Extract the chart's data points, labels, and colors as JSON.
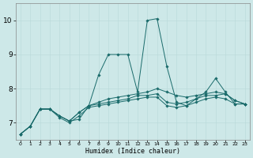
{
  "xlabel": "Humidex (Indice chaleur)",
  "xlim": [
    -0.5,
    23.5
  ],
  "ylim": [
    6.5,
    10.5
  ],
  "yticks": [
    7,
    8,
    9,
    10
  ],
  "xticks": [
    0,
    1,
    2,
    3,
    4,
    5,
    6,
    7,
    8,
    9,
    10,
    11,
    12,
    13,
    14,
    15,
    16,
    17,
    18,
    19,
    20,
    21,
    22,
    23
  ],
  "bg_color": "#cde8e8",
  "line_color": "#1a6b6b",
  "lines": [
    {
      "x": [
        0,
        1,
        2,
        3,
        4,
        5,
        6,
        7,
        8,
        9,
        10,
        11,
        12,
        13,
        14,
        15,
        16,
        17,
        18,
        19,
        20,
        21,
        22,
        23
      ],
      "y": [
        6.67,
        6.9,
        7.4,
        7.4,
        7.2,
        7.05,
        7.1,
        7.5,
        8.4,
        9.0,
        9.0,
        9.0,
        7.9,
        10.0,
        10.05,
        8.65,
        7.6,
        7.5,
        7.7,
        7.9,
        8.3,
        7.9,
        7.55,
        7.55
      ]
    },
    {
      "x": [
        0,
        1,
        2,
        3,
        4,
        5,
        6,
        7,
        8,
        9,
        10,
        11,
        12,
        13,
        14,
        15,
        16,
        17,
        18,
        19,
        20,
        21,
        22,
        23
      ],
      "y": [
        6.67,
        6.9,
        7.4,
        7.4,
        7.2,
        7.05,
        7.3,
        7.5,
        7.6,
        7.7,
        7.75,
        7.8,
        7.85,
        7.9,
        8.0,
        7.9,
        7.8,
        7.75,
        7.8,
        7.85,
        7.9,
        7.85,
        7.65,
        7.55
      ]
    },
    {
      "x": [
        0,
        1,
        2,
        3,
        4,
        5,
        6,
        7,
        8,
        9,
        10,
        11,
        12,
        13,
        14,
        15,
        16,
        17,
        18,
        19,
        20,
        21,
        22,
        23
      ],
      "y": [
        6.67,
        6.9,
        7.4,
        7.4,
        7.2,
        7.05,
        7.3,
        7.5,
        7.55,
        7.6,
        7.65,
        7.7,
        7.8,
        7.8,
        7.85,
        7.6,
        7.55,
        7.6,
        7.7,
        7.8,
        7.8,
        7.85,
        7.65,
        7.55
      ]
    },
    {
      "x": [
        0,
        1,
        2,
        3,
        4,
        5,
        6,
        7,
        8,
        9,
        10,
        11,
        12,
        13,
        14,
        15,
        16,
        17,
        18,
        19,
        20,
        21,
        22,
        23
      ],
      "y": [
        6.67,
        6.9,
        7.4,
        7.4,
        7.15,
        7.0,
        7.2,
        7.45,
        7.5,
        7.55,
        7.6,
        7.65,
        7.7,
        7.75,
        7.75,
        7.5,
        7.45,
        7.5,
        7.6,
        7.7,
        7.75,
        7.7,
        7.55,
        7.55
      ]
    }
  ]
}
